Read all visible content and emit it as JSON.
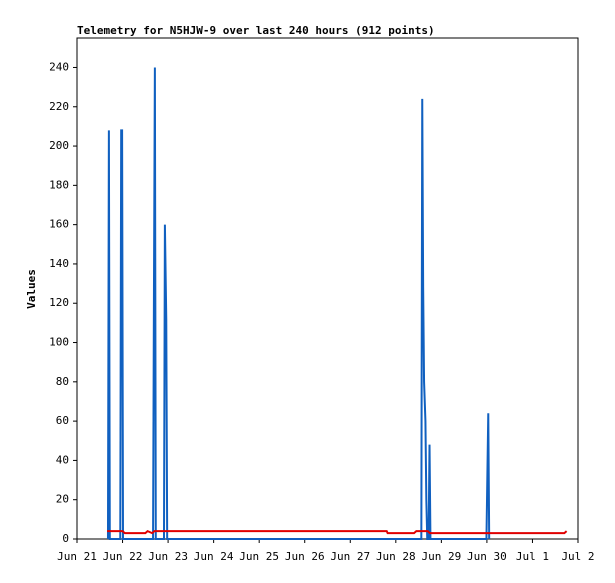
{
  "chart_data": {
    "type": "line",
    "title": "Telemetry for N5HJW-9 over last 240 hours (912 points)",
    "y_label": "Values",
    "xlim": [
      0,
      11
    ],
    "ylim": [
      0,
      255
    ],
    "xticks": [
      {
        "value": 0,
        "label": "Jun 21"
      },
      {
        "value": 1,
        "label": "Jun 22"
      },
      {
        "value": 2,
        "label": "Jun 23"
      },
      {
        "value": 3,
        "label": "Jun 24"
      },
      {
        "value": 4,
        "label": "Jun 25"
      },
      {
        "value": 5,
        "label": "Jun 26"
      },
      {
        "value": 6,
        "label": "Jun 27"
      },
      {
        "value": 7,
        "label": "Jun 28"
      },
      {
        "value": 8,
        "label": "Jun 29"
      },
      {
        "value": 9,
        "label": "Jun 30"
      },
      {
        "value": 10,
        "label": "Jul 1"
      },
      {
        "value": 11,
        "label": "Jul 2"
      }
    ],
    "yticks": [
      0,
      20,
      40,
      60,
      80,
      100,
      120,
      140,
      160,
      180,
      200,
      220,
      240
    ],
    "series": [
      {
        "color": "#1060c0",
        "x": [
          0.68,
          0.7,
          0.72,
          0.95,
          0.97,
          0.99,
          1.01,
          1.67,
          1.69,
          1.71,
          1.73,
          1.91,
          1.93,
          1.96,
          1.98,
          7.56,
          7.58,
          7.6,
          7.62,
          7.65,
          7.67,
          7.69,
          7.72,
          7.74,
          7.76,
          8.99,
          9.01,
          9.03,
          9.05
        ],
        "values": [
          0,
          208,
          0,
          0,
          208,
          208,
          0,
          0,
          128,
          240,
          0,
          0,
          160,
          112,
          0,
          0,
          224,
          128,
          80,
          60,
          20,
          0,
          0,
          48,
          0,
          0,
          32,
          64,
          0
        ]
      },
      {
        "color": "#e00000",
        "x": [
          0.66,
          1.0,
          1.05,
          1.5,
          1.55,
          1.65,
          1.7,
          6.8,
          6.82,
          7.4,
          7.45,
          7.7,
          7.75,
          10.7,
          10.75
        ],
        "values": [
          4,
          4,
          3,
          3,
          4,
          3,
          4,
          4,
          3,
          3,
          4,
          4,
          3,
          3,
          4
        ]
      }
    ]
  }
}
